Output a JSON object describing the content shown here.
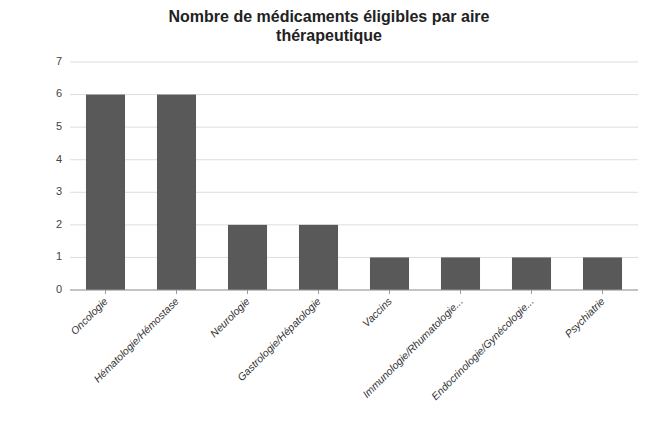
{
  "chart_data": {
    "type": "bar",
    "title": "Nombre de médicaments éligibles par aire\nthérapeutique",
    "categories": [
      "Oncologie",
      "Hématologie/Hémostase",
      "Neurologie",
      "Gastrologie/Hépatologie",
      "Vaccins",
      "Immunologie/Rhumatologie...",
      "Endocrinologie/Gynécologie...",
      "Psychiatrie"
    ],
    "values": [
      6,
      6,
      2,
      2,
      1,
      1,
      1,
      1
    ],
    "color": "#595959",
    "ylim": [
      0,
      7
    ],
    "yticks": [
      0,
      1,
      2,
      3,
      4,
      5,
      6,
      7
    ],
    "grid": true
  }
}
